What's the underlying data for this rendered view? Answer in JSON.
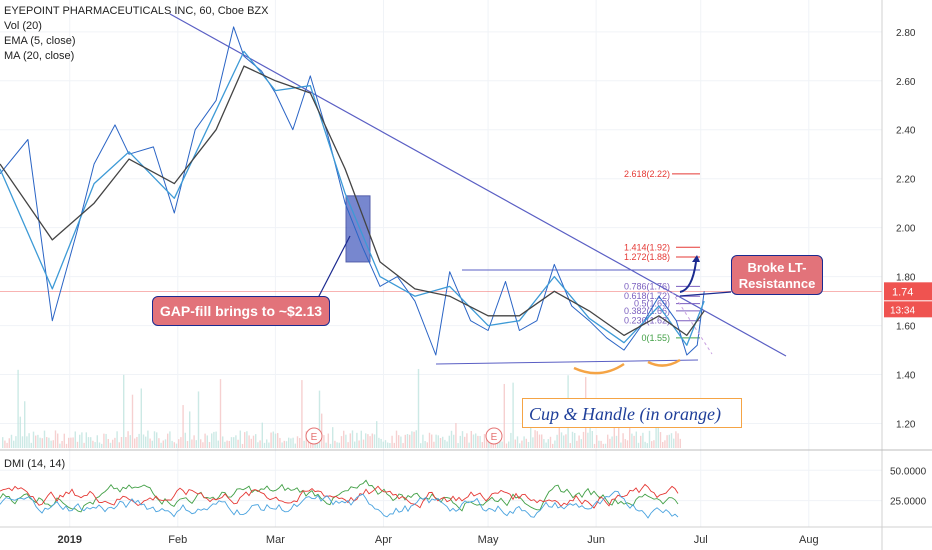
{
  "legend": {
    "title": "EYEPOINT PHARMACEUTICALS INC, 60, Cboe BZX",
    "lines": [
      "Vol (20)",
      "EMA (5, close)",
      "MA (20, close)"
    ]
  },
  "dmi_label": "DMI (14, 14)",
  "annotations": {
    "gap_fill": "GAP-fill brings to ~$2.13",
    "broke_line1": "Broke LT-",
    "broke_line2": "Resistannce",
    "cup_handle": "Cup & Handle (in orange)"
  },
  "colors": {
    "price": "#2a64c5",
    "ema": "#3d9ad6",
    "ma": "#444444",
    "trendline": "#5a5fc4",
    "annotation_fill": "#e2737a",
    "cup_handle": "#f5a445",
    "current_price_tag": "#ef5350",
    "dmi_plus": "#43a047",
    "dmi_minus": "#e53935",
    "adx": "#4aa3df",
    "volume": "#f2c7c7"
  },
  "chart_data": {
    "type": "line",
    "title": "EYEPOINT PHARMACEUTICALS INC, 60, Cboe BZX",
    "y_axis": {
      "ticks": [
        "2.80",
        "2.60",
        "2.40",
        "2.20",
        "2.00",
        "1.80",
        "1.60",
        "1.40",
        "1.20"
      ],
      "range": [
        1.1,
        2.93
      ]
    },
    "x_axis": {
      "ticks": [
        "2019",
        "Feb",
        "Mar",
        "Apr",
        "May",
        "Jun",
        "Jul",
        "Aug"
      ],
      "range_days": [
        "2018-12-12",
        "2019-08-22"
      ]
    },
    "price_labels": {
      "current": "1.74",
      "countdown": "13:34"
    },
    "series": [
      {
        "name": "Price (close)",
        "x": [
          "2018-12-12",
          "2018-12-20",
          "2018-12-27",
          "2019-01-03",
          "2019-01-08",
          "2019-01-14",
          "2019-01-18",
          "2019-01-25",
          "2019-01-31",
          "2019-02-06",
          "2019-02-12",
          "2019-02-17",
          "2019-02-20",
          "2019-02-25",
          "2019-03-01",
          "2019-03-06",
          "2019-03-11",
          "2019-03-16",
          "2019-03-21",
          "2019-03-26",
          "2019-03-31",
          "2019-04-05",
          "2019-04-10",
          "2019-04-16",
          "2019-04-20",
          "2019-04-26",
          "2019-05-01",
          "2019-05-06",
          "2019-05-10",
          "2019-05-15",
          "2019-05-20",
          "2019-05-25",
          "2019-05-30",
          "2019-06-04",
          "2019-06-09",
          "2019-06-14",
          "2019-06-19",
          "2019-06-24",
          "2019-06-27",
          "2019-06-30",
          "2019-07-02"
        ],
        "y": [
          2.22,
          2.36,
          1.62,
          1.98,
          2.26,
          2.42,
          2.3,
          2.33,
          2.06,
          2.4,
          2.52,
          2.82,
          2.7,
          2.64,
          2.55,
          2.4,
          2.62,
          2.38,
          2.1,
          1.92,
          1.76,
          1.8,
          1.7,
          1.48,
          1.82,
          1.62,
          1.58,
          1.78,
          1.58,
          1.62,
          1.85,
          1.68,
          1.62,
          1.55,
          1.5,
          1.6,
          1.72,
          1.62,
          1.48,
          1.52,
          1.74
        ]
      },
      {
        "name": "EMA (5, close)",
        "x": [
          "2018-12-12",
          "2018-12-27",
          "2019-01-08",
          "2019-01-18",
          "2019-01-31",
          "2019-02-12",
          "2019-02-20",
          "2019-03-01",
          "2019-03-11",
          "2019-03-21",
          "2019-03-31",
          "2019-04-10",
          "2019-04-20",
          "2019-05-01",
          "2019-05-10",
          "2019-05-20",
          "2019-05-30",
          "2019-06-09",
          "2019-06-19",
          "2019-06-27",
          "2019-07-02"
        ],
        "y": [
          2.24,
          1.75,
          2.18,
          2.31,
          2.12,
          2.48,
          2.72,
          2.56,
          2.58,
          2.14,
          1.8,
          1.72,
          1.76,
          1.6,
          1.62,
          1.8,
          1.63,
          1.53,
          1.68,
          1.52,
          1.7
        ]
      },
      {
        "name": "MA (20, close)",
        "x": [
          "2018-12-12",
          "2018-12-27",
          "2019-01-08",
          "2019-01-18",
          "2019-01-31",
          "2019-02-12",
          "2019-02-20",
          "2019-03-01",
          "2019-03-11",
          "2019-03-21",
          "2019-03-31",
          "2019-04-10",
          "2019-04-20",
          "2019-05-01",
          "2019-05-10",
          "2019-05-20",
          "2019-05-30",
          "2019-06-09",
          "2019-06-19",
          "2019-06-27",
          "2019-07-02"
        ],
        "y": [
          2.26,
          1.95,
          2.1,
          2.28,
          2.18,
          2.4,
          2.66,
          2.6,
          2.55,
          2.24,
          1.86,
          1.75,
          1.72,
          1.64,
          1.64,
          1.74,
          1.66,
          1.56,
          1.64,
          1.56,
          1.66
        ]
      }
    ],
    "fibonacci": [
      {
        "label": "2.618(2.22)",
        "value": 2.22
      },
      {
        "label": "1.414(1.92)",
        "value": 1.92
      },
      {
        "label": "1.272(1.88)",
        "value": 1.88
      },
      {
        "label": "0.786(1.76)",
        "value": 1.76
      },
      {
        "label": "0.618(1.72)",
        "value": 1.72
      },
      {
        "label": "0.5(1.69)",
        "value": 1.69
      },
      {
        "label": "0.382(1.66)",
        "value": 1.66
      },
      {
        "label": "0.236(1.62)",
        "value": 1.62
      },
      {
        "label": "0(1.55)",
        "value": 1.55
      }
    ],
    "dmi": {
      "ticks": [
        "50.0000",
        "25.0000"
      ],
      "range": [
        5,
        65
      ]
    }
  }
}
